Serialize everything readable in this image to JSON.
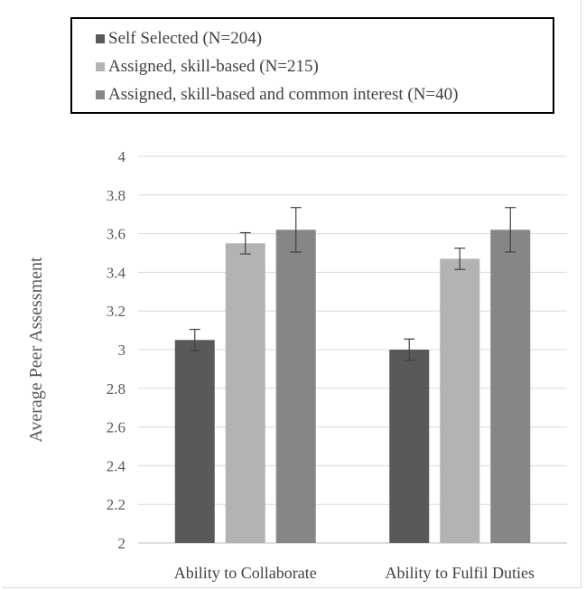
{
  "chart_data": {
    "type": "bar",
    "title": "",
    "xlabel": "",
    "ylabel": "Average Peer Assessment",
    "ylim": [
      2,
      4
    ],
    "ytick_step": 0.2,
    "yticks": [
      "2",
      "2.2",
      "2.4",
      "2.6",
      "2.8",
      "3",
      "3.2",
      "3.4",
      "3.6",
      "3.8",
      "4"
    ],
    "grid": true,
    "legend_position": "top",
    "categories": [
      "Ability to Collaborate",
      "Ability to Fulfil Duties"
    ],
    "series": [
      {
        "name": "Self Selected (N=204)",
        "color": "#595959",
        "values": [
          3.05,
          3.0
        ],
        "error": [
          0.055,
          0.055
        ]
      },
      {
        "name": "Assigned, skill-based (N=215)",
        "color": "#b3b3b3",
        "values": [
          3.55,
          3.47
        ],
        "error": [
          0.055,
          0.055
        ]
      },
      {
        "name": "Assigned, skill-based and common interest (N=40)",
        "color": "#868686",
        "values": [
          3.62,
          3.62
        ],
        "error": [
          0.115,
          0.115
        ]
      }
    ]
  }
}
